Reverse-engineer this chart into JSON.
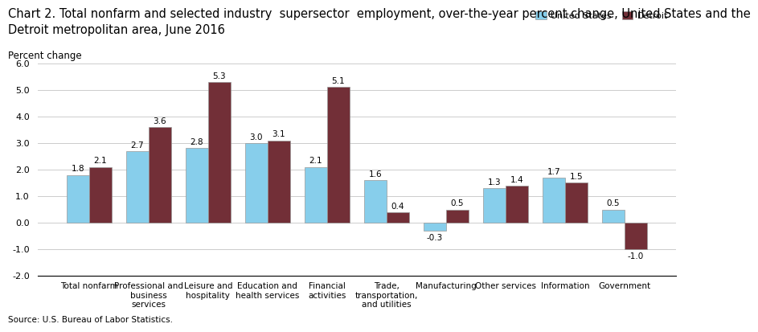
{
  "title_line1": "Chart 2. Total nonfarm and selected industry  supersector  employment, over-the-year percent change, United States and the",
  "title_line2": "Detroit metropolitan area, June 2016",
  "ylabel": "Percent change",
  "source": "Source: U.S. Bureau of Labor Statistics.",
  "categories": [
    "Total nonfarm",
    "Professional and\nbusiness\nservices",
    "Leisure and\nhospitality",
    "Education and\nhealth services",
    "Financial\nactivities",
    "Trade,\ntransportation,\nand utilities",
    "Manufacturing",
    "Other services",
    "Information",
    "Government"
  ],
  "us_values": [
    1.8,
    2.7,
    2.8,
    3.0,
    2.1,
    1.6,
    -0.3,
    1.3,
    1.7,
    0.5
  ],
  "detroit_values": [
    2.1,
    3.6,
    5.3,
    3.1,
    5.1,
    0.4,
    0.5,
    1.4,
    1.5,
    -1.0
  ],
  "us_color": "#87CEEB",
  "detroit_color": "#722F37",
  "us_label": "United States",
  "detroit_label": "Detroit",
  "ylim": [
    -2.0,
    6.0
  ],
  "yticks": [
    -2.0,
    -1.0,
    0.0,
    1.0,
    2.0,
    3.0,
    4.0,
    5.0,
    6.0
  ],
  "bar_width": 0.38,
  "label_fontsize": 7.5,
  "tick_fontsize": 8,
  "title_fontsize": 10.5,
  "category_fontsize": 7.5
}
